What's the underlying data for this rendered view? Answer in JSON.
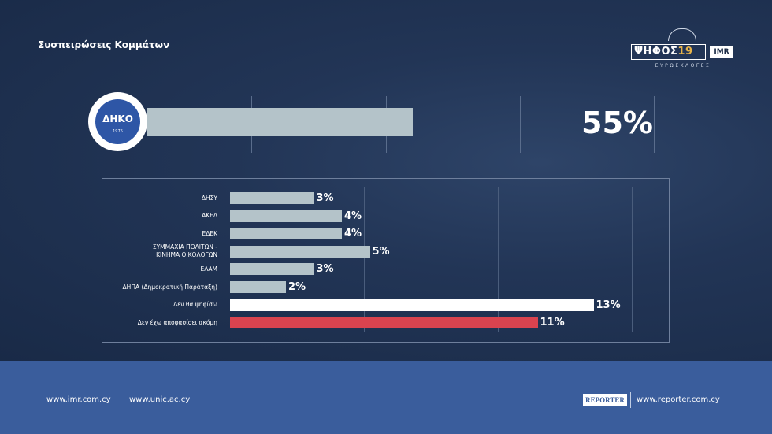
{
  "header": {
    "title": "Συσπειρώσεις Κομμάτων"
  },
  "logo": {
    "main": "ΨΗΦΟΣ",
    "year": "19",
    "partner": "IMR",
    "sub": "ΕΥΡΩΕΚΛΟΓΕΣ"
  },
  "badge": {
    "text": "ΔΗΚΟ",
    "year": "1976"
  },
  "chart_data": [
    {
      "type": "bar",
      "categories": [
        ""
      ],
      "values": [
        55
      ],
      "value_labels": [
        "55%"
      ],
      "xlim": [
        0,
        100
      ],
      "color": "#b4c3c9"
    },
    {
      "type": "bar",
      "orientation": "horizontal",
      "categories": [
        "ΔΗΣΥ",
        "ΑΚΕΛ",
        "ΕΔΕΚ",
        "ΣΥΜΜΑΧΙΑ ΠΟΛΙΤΩΝ - ΚΙΝΗΜΑ ΟΙΚΟΛΟΓΩΝ",
        "ΕΛΑΜ",
        "ΔΗΠΑ (Δημοκρατική Παράταξη)",
        "Δεν θα ψηφίσω",
        "Δεν έχω αποφασίσει ακόμη"
      ],
      "label_lines": [
        [
          "ΔΗΣΥ"
        ],
        [
          "ΑΚΕΛ"
        ],
        [
          "ΕΔΕΚ"
        ],
        [
          "ΣΥΜΜΑΧΙΑ ΠΟΛΙΤΩΝ -",
          "ΚΙΝΗΜΑ ΟΙΚΟΛΟΓΩΝ"
        ],
        [
          "ΕΛΑΜ"
        ],
        [
          "ΔΗΠΑ (Δημοκρατική Παράταξη)"
        ],
        [
          "Δεν θα ψηφίσω"
        ],
        [
          "Δεν έχω αποφασίσει ακόμη"
        ]
      ],
      "values": [
        3,
        4,
        4,
        5,
        3,
        2,
        13,
        11
      ],
      "value_labels": [
        "3%",
        "4%",
        "4%",
        "5%",
        "3%",
        "2%",
        "13%",
        "11%"
      ],
      "colors": [
        "#b4c3c9",
        "#b4c3c9",
        "#b4c3c9",
        "#b4c3c9",
        "#b4c3c9",
        "#b4c3c9",
        "#ffffff",
        "#d9434f"
      ]
    }
  ],
  "footer": {
    "links": [
      "www.imr.com.cy",
      "www.unic.ac.cy"
    ],
    "reporter_logo": "REPORTER",
    "reporter_link": "www.reporter.com.cy"
  }
}
